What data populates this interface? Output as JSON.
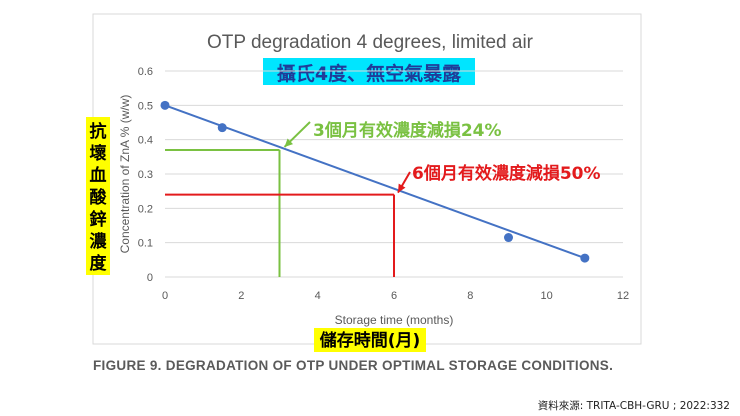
{
  "chart_data": {
    "type": "line",
    "title": "OTP degradation 4 degrees, limited air",
    "subtitle": "攝氏4度、無空氣暴露",
    "xlabel": "Storage time (months)",
    "ylabel": "Concentration of ZnA % (w/w)",
    "xlabel_zh": "儲存時間(月)",
    "ylabel_zh": [
      "抗",
      "壞",
      "血",
      "酸",
      "鋅",
      "濃",
      "度"
    ],
    "xlim": [
      0,
      12
    ],
    "ylim": [
      0,
      0.6
    ],
    "xticks": [
      0,
      2,
      4,
      6,
      8,
      10,
      12
    ],
    "yticks": [
      0,
      0.1,
      0.2,
      0.3,
      0.4,
      0.5,
      0.6
    ],
    "grid": true,
    "series": [
      {
        "name": "OTP",
        "color": "#4472c4",
        "x": [
          0,
          1.5,
          9,
          11
        ],
        "y": [
          0.5,
          0.435,
          0.115,
          0.055
        ],
        "line_x": [
          0,
          11
        ],
        "line_y": [
          0.5,
          0.055
        ]
      }
    ],
    "annotations": [
      {
        "text_main": "3個月有效濃度減損",
        "text_pct": "24%",
        "x": 3,
        "y": 0.37,
        "color": "#7ac142"
      },
      {
        "text_main": "6個月有效濃度減損",
        "text_pct": "50%",
        "x": 6,
        "y": 0.24,
        "color": "#e31a1c"
      }
    ]
  },
  "caption": {
    "figure": "FIGURE 9.",
    "text": "DEGRADATION OF OTP UNDER OPTIMAL STORAGE CONDITIONS."
  },
  "source": "資料來源: TRITA-CBH-GRU ; 2022:332",
  "colors": {
    "highlight_cyan": "#00e5ff",
    "highlight_yellow": "#ffff00",
    "frame": "#d9d9d9",
    "grid": "#d9d9d9"
  }
}
